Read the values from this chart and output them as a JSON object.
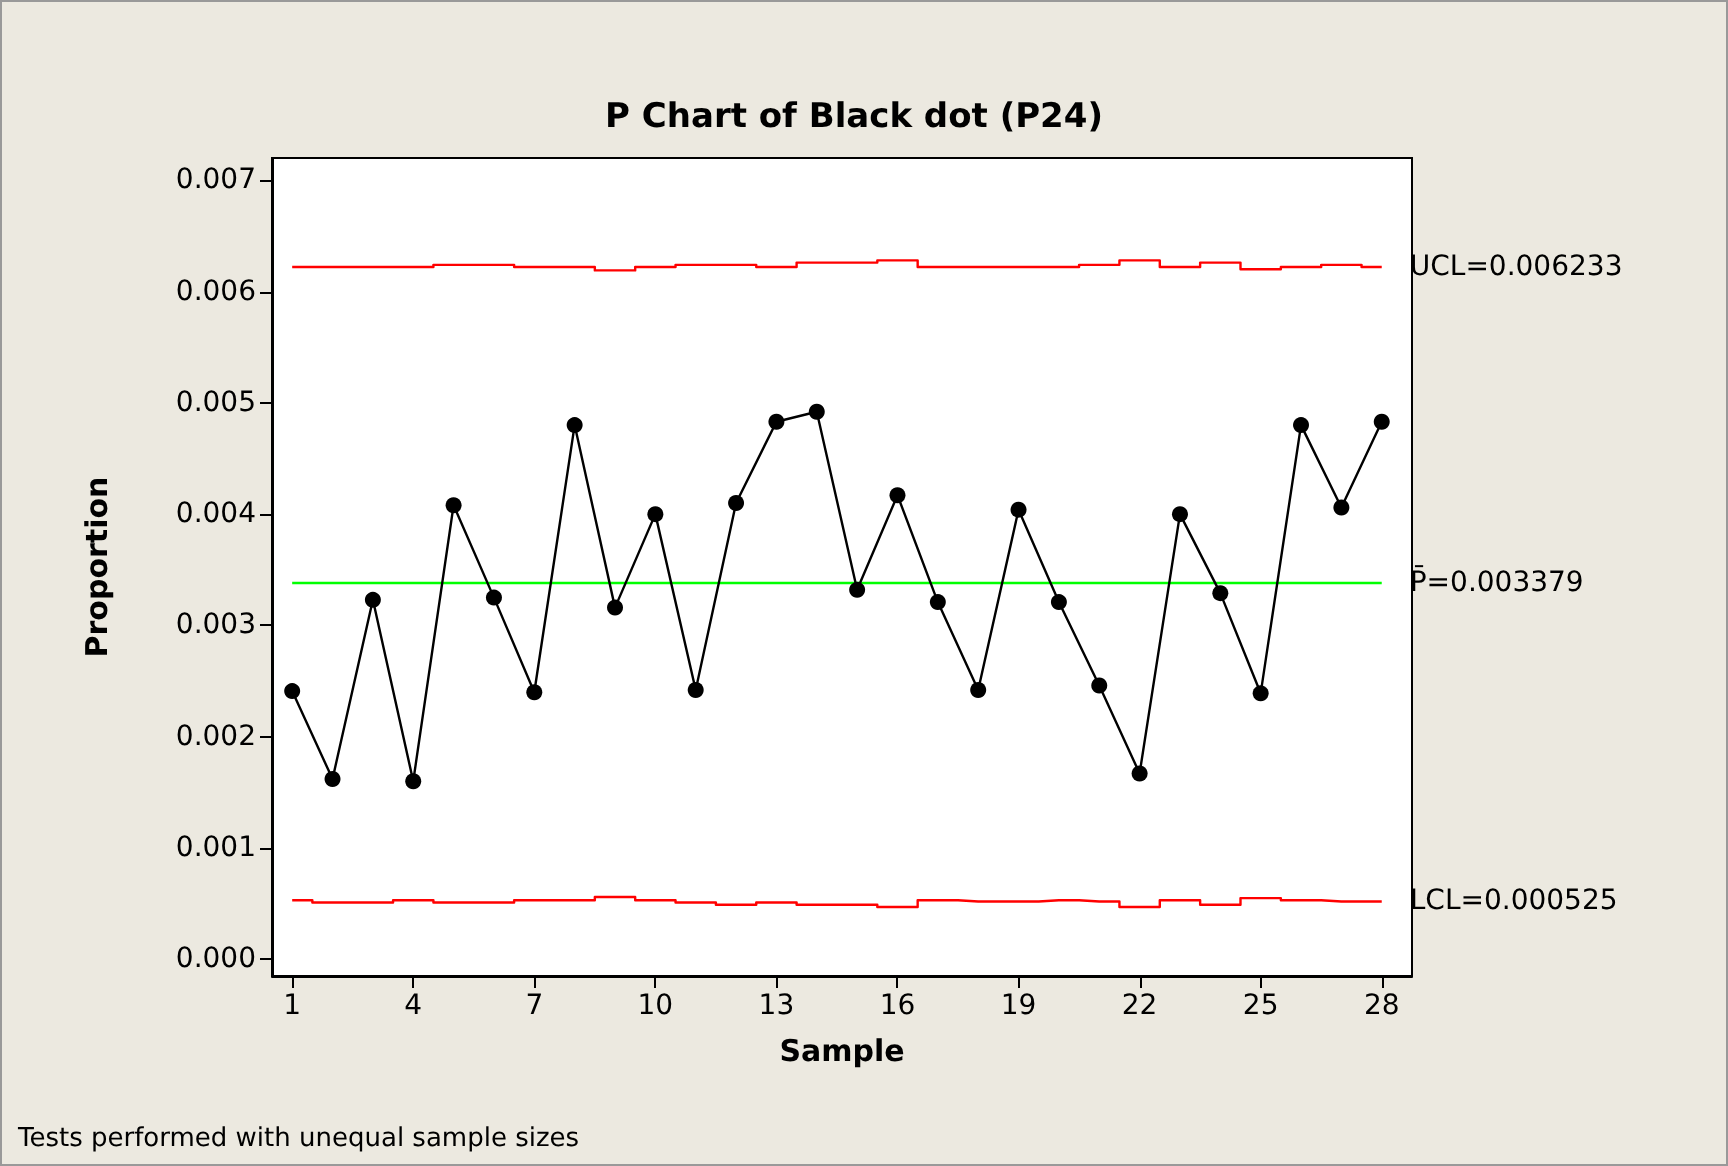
{
  "chart_data": {
    "type": "line",
    "title": "P Chart of Black dot (P24)",
    "xlabel": "Sample",
    "ylabel": "Proportion",
    "x": [
      1,
      2,
      3,
      4,
      5,
      6,
      7,
      8,
      9,
      10,
      11,
      12,
      13,
      14,
      15,
      16,
      17,
      18,
      19,
      20,
      21,
      22,
      23,
      24,
      25,
      26,
      27,
      28
    ],
    "series": [
      {
        "type": "line",
        "color": "#000000",
        "marker": "circle",
        "values": [
          0.00241,
          0.00162,
          0.00323,
          0.0016,
          0.00408,
          0.00325,
          0.0024,
          0.0048,
          0.00316,
          0.004,
          0.00242,
          0.0041,
          0.00483,
          0.00492,
          0.00332,
          0.00417,
          0.00321,
          0.00242,
          0.00404,
          0.00321,
          0.00246,
          0.00167,
          0.004,
          0.00329,
          0.00239,
          0.0048,
          0.00406,
          0.00483
        ]
      },
      {
        "type": "step",
        "name": "UCL=0.006233",
        "color": "#ff0000",
        "marker": "none",
        "values": [
          0.00622,
          0.00622,
          0.00622,
          0.00622,
          0.00624,
          0.00624,
          0.00622,
          0.00622,
          0.00619,
          0.00622,
          0.00624,
          0.00624,
          0.00622,
          0.00626,
          0.00626,
          0.00628,
          0.00622,
          0.00622,
          0.00622,
          0.00622,
          0.00624,
          0.00628,
          0.00622,
          0.00626,
          0.0062,
          0.00622,
          0.00624,
          0.00622
        ]
      },
      {
        "type": "step",
        "name": "LCL=0.000525",
        "color": "#ff0000",
        "marker": "none",
        "values": [
          0.00053,
          0.00051,
          0.00051,
          0.00053,
          0.00051,
          0.00051,
          0.00053,
          0.00053,
          0.00056,
          0.00053,
          0.00051,
          0.00049,
          0.00051,
          0.00049,
          0.00049,
          0.00047,
          0.00053,
          0.00052,
          0.00052,
          0.00053,
          0.00052,
          0.00047,
          0.00053,
          0.00049,
          0.00055,
          0.00053,
          0.00052,
          0.00052
        ]
      }
    ],
    "ref_lines": [
      {
        "axis": "y",
        "value": 0.003379,
        "label": "P̄=0.003379",
        "color": "#00ff00"
      }
    ],
    "xlim": [
      0.5,
      28.75
    ],
    "xticks": [
      1,
      4,
      7,
      10,
      13,
      16,
      19,
      22,
      25,
      28
    ],
    "ylim": [
      -0.00015,
      0.0072
    ],
    "yticks": [
      {
        "value": 0,
        "label": "0.000"
      },
      {
        "value": 0.001,
        "label": "0.001"
      },
      {
        "value": 0.002,
        "label": "0.002"
      },
      {
        "value": 0.003,
        "label": "0.003"
      },
      {
        "value": 0.004,
        "label": "0.004"
      },
      {
        "value": 0.005,
        "label": "0.005"
      },
      {
        "value": 0.006,
        "label": "0.006"
      },
      {
        "value": 0.007,
        "label": "0.007"
      }
    ],
    "annotations": [
      "Tests performed with unequal sample sizes"
    ]
  }
}
